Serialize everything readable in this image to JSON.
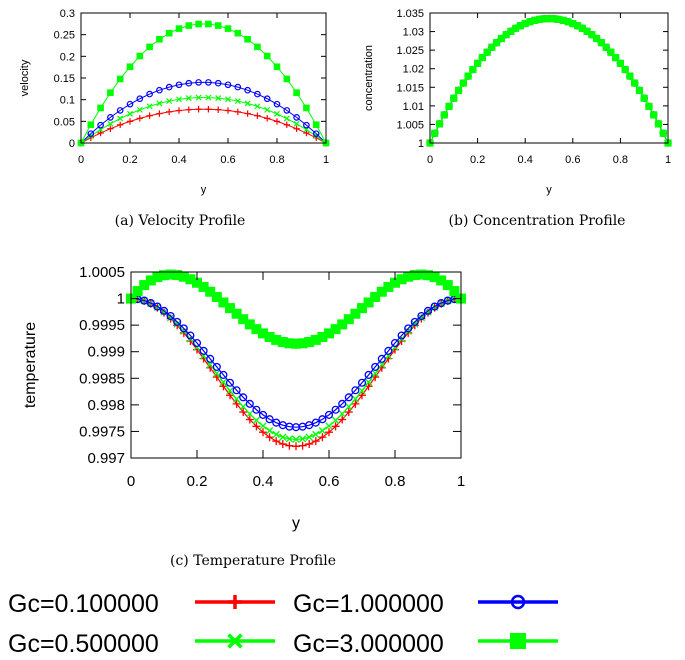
{
  "series_styles": [
    {
      "name": "Gc=0.100000",
      "color": "#ff0000",
      "marker": "plus"
    },
    {
      "name": "Gc=0.500000",
      "color": "#00ff00",
      "marker": "cross"
    },
    {
      "name": "Gc=1.000000",
      "color": "#0000ff",
      "marker": "circle"
    },
    {
      "name": "Gc=3.000000",
      "color": "#00ff00",
      "marker": "square"
    }
  ],
  "legend": {
    "placement": "bottom",
    "entries": [
      {
        "label": "Gc=0.100000",
        "color": "#ff0000",
        "marker": "plus"
      },
      {
        "label": "Gc=1.000000",
        "color": "#0000ff",
        "marker": "circle"
      },
      {
        "label": "Gc=0.500000",
        "color": "#00ff00",
        "marker": "cross"
      },
      {
        "label": "Gc=3.000000",
        "color": "#00ff00",
        "marker": "square"
      }
    ]
  },
  "captions": {
    "a": "(a)  Velocity Profile",
    "b": "(b)  Concentration Profile",
    "c": "(c)  Temperature Profile"
  },
  "chart_data": [
    {
      "id": "velocity",
      "type": "line",
      "title": "",
      "caption": "(a) Velocity Profile",
      "xlabel": "y",
      "ylabel": "velocity",
      "xlim": [
        0,
        1
      ],
      "ylim": [
        0,
        0.3
      ],
      "xticks": [
        "0",
        "0.2",
        "0.4",
        "0.6",
        "0.8",
        "1"
      ],
      "xtick_values": [
        0,
        0.2,
        0.4,
        0.6,
        0.8,
        1
      ],
      "yticks": [
        "0",
        "0.05",
        "0.1",
        "0.15",
        "0.2",
        "0.25",
        "0.3"
      ],
      "ytick_values": [
        0,
        0.05,
        0.1,
        0.15,
        0.2,
        0.25,
        0.3
      ],
      "grid": false,
      "profile": "parabola",
      "x_step": 0.04,
      "series": [
        {
          "name": "Gc=0.100000",
          "peak_at_0.5": 0.078,
          "endpoints": [
            0,
            0
          ]
        },
        {
          "name": "Gc=0.500000",
          "peak_at_0.5": 0.105,
          "endpoints": [
            0,
            0
          ]
        },
        {
          "name": "Gc=1.000000",
          "peak_at_0.5": 0.14,
          "endpoints": [
            0,
            0
          ]
        },
        {
          "name": "Gc=3.000000",
          "peak_at_0.5": 0.275,
          "endpoints": [
            0,
            0
          ]
        }
      ]
    },
    {
      "id": "concentration",
      "type": "line",
      "title": "",
      "caption": "(b) Concentration Profile",
      "xlabel": "y",
      "ylabel": "concentration",
      "xlim": [
        0,
        1
      ],
      "ylim": [
        1,
        1.035
      ],
      "xticks": [
        "0",
        "0.2",
        "0.4",
        "0.6",
        "0.8",
        "1"
      ],
      "xtick_values": [
        0,
        0.2,
        0.4,
        0.6,
        0.8,
        1
      ],
      "yticks": [
        "1",
        "1.005",
        "1.01",
        "1.015",
        "1.02",
        "1.025",
        "1.03",
        "1.035"
      ],
      "ytick_values": [
        1,
        1.005,
        1.01,
        1.015,
        1.02,
        1.025,
        1.03,
        1.035
      ],
      "grid": false,
      "profile": "parabola",
      "x_step": 0.02,
      "note": "All four series overlap; only Gc=3.000000 squares visible on top",
      "series": [
        {
          "name": "Gc=0.100000",
          "peak_at_0.5": 1.0335,
          "endpoints": [
            1,
            1
          ]
        },
        {
          "name": "Gc=0.500000",
          "peak_at_0.5": 1.0335,
          "endpoints": [
            1,
            1
          ]
        },
        {
          "name": "Gc=1.000000",
          "peak_at_0.5": 1.0335,
          "endpoints": [
            1,
            1
          ]
        },
        {
          "name": "Gc=3.000000",
          "peak_at_0.5": 1.0335,
          "endpoints": [
            1,
            1
          ]
        }
      ]
    },
    {
      "id": "temperature",
      "type": "line",
      "title": "",
      "caption": "(c) Temperature Profile",
      "xlabel": "y",
      "ylabel": "temperature",
      "xlim": [
        0,
        1
      ],
      "ylim": [
        0.997,
        1.0005
      ],
      "xticks": [
        "0",
        "0.2",
        "0.4",
        "0.6",
        "0.8",
        "1"
      ],
      "xtick_values": [
        0,
        0.2,
        0.4,
        0.6,
        0.8,
        1
      ],
      "yticks": [
        "0.997",
        "0.9975",
        "0.998",
        "0.9985",
        "0.999",
        "0.9995",
        "1",
        "1.0005"
      ],
      "ytick_values": [
        0.997,
        0.9975,
        0.998,
        0.9985,
        0.999,
        0.9995,
        1,
        1.0005
      ],
      "grid": false,
      "x_step": 0.02,
      "series": [
        {
          "name": "Gc=0.100000",
          "profile": "cos_bowl",
          "value_at_0": 1.0,
          "min_at_0.5": 0.99722
        },
        {
          "name": "Gc=0.500000",
          "profile": "cos_bowl",
          "value_at_0": 1.0,
          "min_at_0.5": 0.99735
        },
        {
          "name": "Gc=1.000000",
          "profile": "cos_bowl",
          "value_at_0": 1.0,
          "min_at_0.5": 0.99758
        },
        {
          "name": "Gc=3.000000",
          "profile": "wave",
          "value_at_0": 1.0,
          "max_near_0.1_and_0.9": 1.00044,
          "min_at_0.5": 0.99915
        }
      ]
    }
  ]
}
